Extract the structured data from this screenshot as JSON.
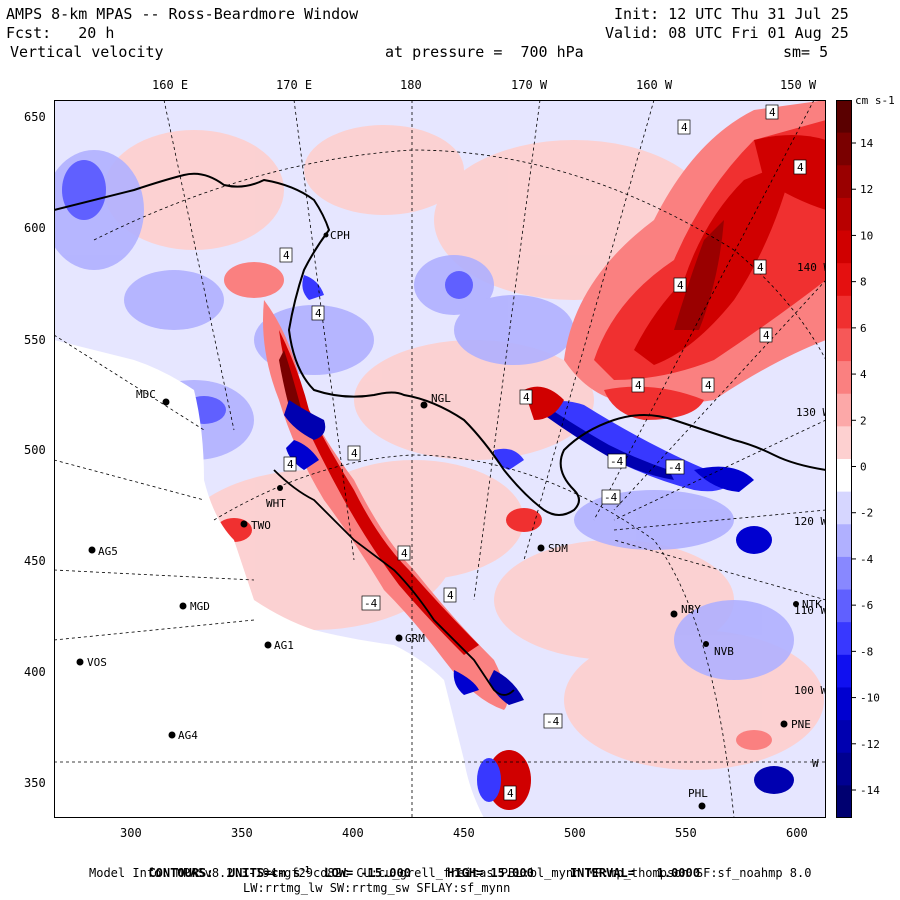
{
  "header": {
    "title": "AMPS 8-km MPAS -- Ross-Beardmore Window",
    "init": "Init: 12 UTC Thu 31 Jul 25",
    "forecast": "Fcst:   20 h",
    "valid": "Valid: 08 UTC Fri 01 Aug 25",
    "field": "Vertical velocity",
    "level": "at pressure =  700 hPa",
    "smooth": "sm= 5"
  },
  "axes": {
    "top_labels": [
      "160 E",
      "170 E",
      "180",
      "170 W",
      "160 W",
      "150 W"
    ],
    "left_ticks": [
      "650",
      "600",
      "550",
      "500",
      "450",
      "400",
      "350"
    ],
    "bottom_ticks": [
      "300",
      "350",
      "400",
      "450",
      "500",
      "550",
      "600"
    ],
    "right_meridians": [
      "140 W",
      "130 W",
      "120 W",
      "110 W",
      "100 W",
      "W"
    ]
  },
  "colorbar": {
    "units": "cm s-1",
    "labels": [
      "14",
      "12",
      "10",
      "8",
      "6",
      "4",
      "2",
      "0",
      "-2",
      "-4",
      "-6",
      "-8",
      "-10",
      "-12",
      "-14"
    ],
    "colors": [
      "#5a0000",
      "#7a0000",
      "#9a0000",
      "#b80000",
      "#d00000",
      "#e41010",
      "#f03030",
      "#f65858",
      "#fa8080",
      "#fca8a8",
      "#fdd0d0",
      "#ffffff",
      "#d6d6ff",
      "#b0b0ff",
      "#8888ff",
      "#6060ff",
      "#3838ff",
      "#1010f0",
      "#0000d0",
      "#0000b0",
      "#000090",
      "#000070"
    ]
  },
  "stations": [
    {
      "name": "MDC"
    },
    {
      "name": "NGL"
    },
    {
      "name": "CPH"
    },
    {
      "name": "AG5"
    },
    {
      "name": "TWO"
    },
    {
      "name": "MGD"
    },
    {
      "name": "AG1"
    },
    {
      "name": "VOS"
    },
    {
      "name": "AG4"
    },
    {
      "name": "SDM"
    },
    {
      "name": "NBY"
    },
    {
      "name": "PNE"
    },
    {
      "name": "PHL"
    },
    {
      "name": "GRM"
    },
    {
      "name": "WHT"
    },
    {
      "name": "NVB"
    },
    {
      "name": "NTK"
    }
  ],
  "contour_labels": [
    "4",
    "-4"
  ],
  "footer": {
    "contours_label": "CONTOURS:",
    "units": "UNITS=cm s",
    "units_sup": "-1",
    "low": "LOW= -15.000",
    "high": "HIGH= 15.000",
    "interval": "INTERVAL=   1.0000",
    "model_info": "Model Info: MPASv8.2.3-194-gf29cd82c CU:cu_grell_freitas PBL:bl_mynn MP:mp_thompson SF:sf_noahmp 8.0",
    "physics": "LW:rrtmg_lw SW:rrtmg_sw SFLAY:sf_mynn"
  }
}
